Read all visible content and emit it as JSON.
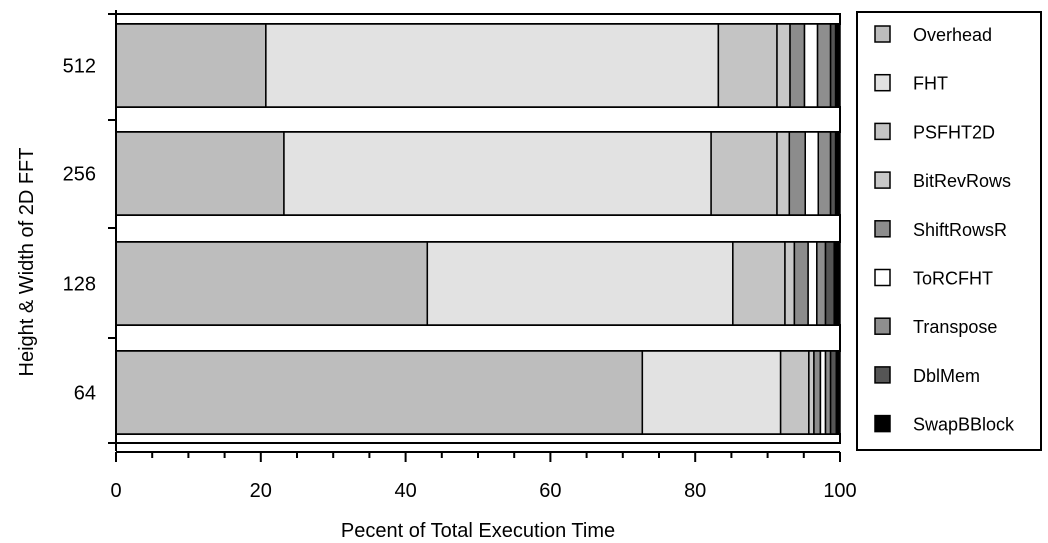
{
  "chart_data": {
    "type": "bar",
    "orientation": "horizontal",
    "stacked": true,
    "xlabel": "Pecent of Total Execution Time",
    "ylabel": "Height & Width of 2D FFT",
    "xlim": [
      0,
      100
    ],
    "xticks": [
      "0",
      "20",
      "40",
      "60",
      "80",
      "100"
    ],
    "categories": [
      "512",
      "256",
      "128",
      "64"
    ],
    "legend_position": "right",
    "grid": false,
    "series": [
      {
        "name": "Overhead",
        "color": "#bdbdbd",
        "values": [
          20.7,
          23.2,
          43.0,
          72.7
        ]
      },
      {
        "name": "FHT",
        "color": "#e2e2e2",
        "values": [
          62.5,
          59.0,
          42.2,
          19.1
        ]
      },
      {
        "name": "PSFHT2D",
        "color": "#c4c4c4",
        "values": [
          8.1,
          9.1,
          7.2,
          3.9
        ]
      },
      {
        "name": "BitRevRows",
        "color": "#c8c8c8",
        "values": [
          1.8,
          1.7,
          1.3,
          0.7
        ]
      },
      {
        "name": "ShiftRowsR",
        "color": "#8c8c8c",
        "values": [
          2.0,
          2.2,
          1.9,
          0.9
        ]
      },
      {
        "name": "ToRCFHT",
        "color": "#ffffff",
        "values": [
          1.8,
          1.8,
          1.2,
          0.7
        ]
      },
      {
        "name": "Transpose",
        "color": "#8e8e8e",
        "values": [
          1.8,
          1.7,
          1.2,
          0.7
        ]
      },
      {
        "name": "DblMem",
        "color": "#555555",
        "values": [
          0.7,
          0.7,
          1.2,
          0.8
        ]
      },
      {
        "name": "SwapBBlock",
        "color": "#000000",
        "values": [
          0.6,
          0.6,
          0.8,
          0.5
        ]
      }
    ]
  }
}
